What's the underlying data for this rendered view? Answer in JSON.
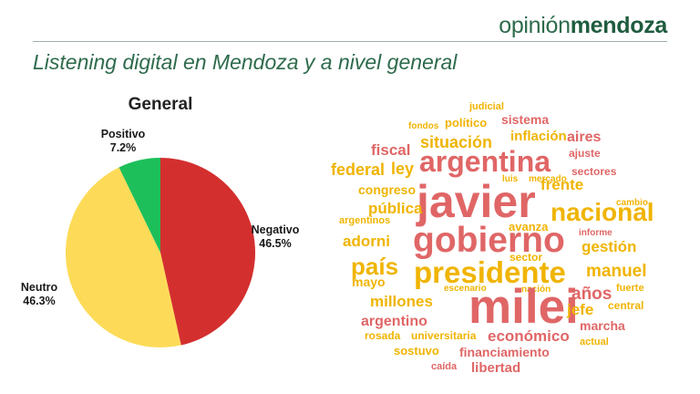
{
  "header": {
    "brand_part1": "opinión",
    "brand_part2": "mendoza"
  },
  "page_title": "Listening digital en Mendoza y a nivel general",
  "chart_data": {
    "type": "pie",
    "title": "General",
    "slices": [
      {
        "label": "Negativo",
        "value": 46.5,
        "display": "46.5%",
        "color": "#d42f2f"
      },
      {
        "label": "Neutro",
        "value": 46.3,
        "display": "46.3%",
        "color": "#fddb58"
      },
      {
        "label": "Positivo",
        "value": 7.2,
        "display": "7.2%",
        "color": "#1dbf5b"
      }
    ]
  },
  "word_cloud": {
    "colors": {
      "red": "#e06666",
      "gold": "#f0b400"
    },
    "words": [
      {
        "text": "judicial",
        "color": "gold"
      },
      {
        "text": "fondos",
        "color": "gold"
      },
      {
        "text": "político",
        "color": "gold"
      },
      {
        "text": "sistema",
        "color": "red"
      },
      {
        "text": "inflación",
        "color": "gold"
      },
      {
        "text": "aires",
        "color": "red"
      },
      {
        "text": "fiscal",
        "color": "red"
      },
      {
        "text": "situación",
        "color": "gold"
      },
      {
        "text": "ajuste",
        "color": "red"
      },
      {
        "text": "argentina",
        "color": "red"
      },
      {
        "text": "federal",
        "color": "gold"
      },
      {
        "text": "ley",
        "color": "gold"
      },
      {
        "text": "sectores",
        "color": "red"
      },
      {
        "text": "luis",
        "color": "gold"
      },
      {
        "text": "mercado",
        "color": "gold"
      },
      {
        "text": "congreso",
        "color": "gold"
      },
      {
        "text": "frente",
        "color": "gold"
      },
      {
        "text": "javier",
        "color": "red"
      },
      {
        "text": "cambio",
        "color": "gold"
      },
      {
        "text": "pública",
        "color": "gold"
      },
      {
        "text": "nacional",
        "color": "gold"
      },
      {
        "text": "argentinos",
        "color": "gold"
      },
      {
        "text": "avanza",
        "color": "gold"
      },
      {
        "text": "informe",
        "color": "red"
      },
      {
        "text": "adorni",
        "color": "gold"
      },
      {
        "text": "gobierno",
        "color": "red"
      },
      {
        "text": "gestión",
        "color": "gold"
      },
      {
        "text": "sector",
        "color": "gold"
      },
      {
        "text": "país",
        "color": "gold"
      },
      {
        "text": "presidente",
        "color": "gold"
      },
      {
        "text": "manuel",
        "color": "gold"
      },
      {
        "text": "mayo",
        "color": "gold"
      },
      {
        "text": "años",
        "color": "red"
      },
      {
        "text": "escenario",
        "color": "gold"
      },
      {
        "text": "nación",
        "color": "gold"
      },
      {
        "text": "fuerte",
        "color": "gold"
      },
      {
        "text": "millones",
        "color": "gold"
      },
      {
        "text": "milei",
        "color": "red"
      },
      {
        "text": "jefe",
        "color": "gold"
      },
      {
        "text": "central",
        "color": "gold"
      },
      {
        "text": "argentino",
        "color": "red"
      },
      {
        "text": "marcha",
        "color": "red"
      },
      {
        "text": "rosada",
        "color": "gold"
      },
      {
        "text": "universitaria",
        "color": "gold"
      },
      {
        "text": "económico",
        "color": "red"
      },
      {
        "text": "actual",
        "color": "gold"
      },
      {
        "text": "sostuvo",
        "color": "gold"
      },
      {
        "text": "financiamiento",
        "color": "red"
      },
      {
        "text": "caída",
        "color": "red"
      },
      {
        "text": "libertad",
        "color": "red"
      }
    ]
  }
}
